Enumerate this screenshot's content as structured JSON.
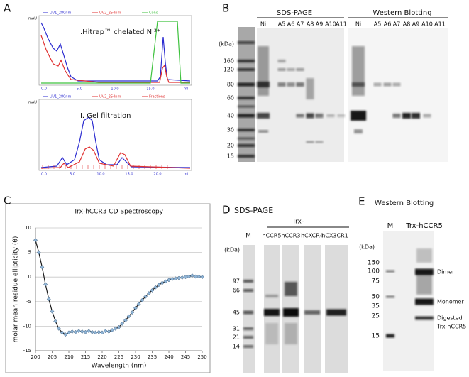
{
  "panel_a": {
    "label": "A",
    "top": {
      "legend": [
        "UV1_280nm",
        "UV2_254nm",
        "Cond"
      ],
      "title": "I.Hitrap™ chelated Ni²⁺",
      "unit": "mAU",
      "xticks": [
        "0.0",
        "5.0",
        "10.0",
        "15.0",
        "ml"
      ]
    },
    "bottom": {
      "legend": [
        "UV1_280nm",
        "UV2_254nm",
        "Fractions"
      ],
      "title": "II. Gel filtration",
      "unit": "mAU",
      "xticks": [
        "0.0",
        "5.0",
        "10.0",
        "15.0",
        "20.0",
        "ml"
      ]
    }
  },
  "panel_b": {
    "label": "B",
    "unit": "(kDa)",
    "markers": [
      160,
      120,
      80,
      60,
      40,
      30,
      20,
      15
    ],
    "gels": [
      {
        "title": "SDS-PAGE",
        "lanes": [
          "Ni",
          "A5",
          "A6",
          "A7",
          "A8",
          "A9",
          "A10",
          "A11"
        ]
      },
      {
        "title": "Western Blotting",
        "lanes": [
          "Ni",
          "A5",
          "A6",
          "A7",
          "A8",
          "A9",
          "A10",
          "A11"
        ]
      }
    ]
  },
  "chart_data": {
    "type": "line",
    "panel_label": "C",
    "title": "Trx-hCCR3 CD Spectroscopy",
    "x_label": "Wavelength (nm)",
    "y_label": "molar mean residue ellipticity (θ)",
    "x": [
      200,
      201,
      202,
      203,
      204,
      205,
      206,
      207,
      208,
      209,
      210,
      211,
      212,
      213,
      214,
      215,
      216,
      217,
      218,
      219,
      220,
      221,
      222,
      223,
      224,
      225,
      226,
      227,
      228,
      229,
      230,
      231,
      232,
      233,
      234,
      235,
      236,
      237,
      238,
      239,
      240,
      241,
      242,
      243,
      244,
      245,
      246,
      247,
      248,
      249,
      250
    ],
    "values": [
      7.5,
      5,
      2,
      -1.5,
      -4.5,
      -7,
      -9,
      -10.5,
      -11.3,
      -11.7,
      -11.3,
      -11.1,
      -11.2,
      -11,
      -11.1,
      -11.2,
      -11,
      -11.2,
      -11.3,
      -11.2,
      -11.3,
      -11,
      -11.1,
      -10.8,
      -10.5,
      -10.2,
      -9.5,
      -8.8,
      -8,
      -7.2,
      -6.3,
      -5.5,
      -4.7,
      -4,
      -3.3,
      -2.7,
      -2.1,
      -1.6,
      -1.2,
      -0.9,
      -0.6,
      -0.4,
      -0.3,
      -0.2,
      -0.1,
      0,
      0.1,
      0.3,
      0.1,
      0.1,
      0
    ],
    "xlim": [
      200,
      250
    ],
    "xticks": [
      200,
      205,
      210,
      215,
      220,
      225,
      230,
      235,
      240,
      245,
      250
    ],
    "ylim": [
      -15,
      10
    ],
    "yticks": [
      -15,
      -10,
      -5,
      0,
      5,
      10
    ],
    "grid": true,
    "color": "#1a1a1a",
    "marker_color": "#8fb4d6"
  },
  "panel_d": {
    "label": "D",
    "title": "SDS-PAGE",
    "group": "Trx-",
    "lanes": [
      "M",
      "hCCR5",
      "hCCR3",
      "hCXCR4",
      "hCX3CR1"
    ],
    "unit": "(kDa)",
    "markers": [
      97,
      66,
      45,
      31,
      21,
      14
    ]
  },
  "panel_e": {
    "label": "E",
    "title": "Western Blotting",
    "lanes": [
      "M",
      "Trx-hCCR5"
    ],
    "unit": "(kDa)",
    "markers": [
      150,
      100,
      75,
      50,
      35,
      25,
      15
    ],
    "annotations": [
      "Dimer",
      "Monomer",
      "Digested",
      "Trx-hCCR5"
    ]
  }
}
